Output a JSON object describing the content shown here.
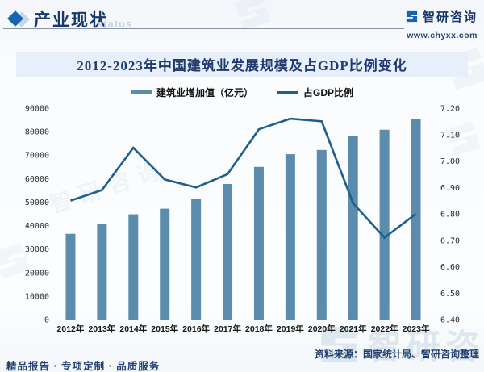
{
  "header": {
    "title": "产业现状",
    "watermark_status": "status",
    "brand": {
      "name": "智研咨询",
      "website": "www.chyxx.com"
    }
  },
  "chart": {
    "title": "2012-2023年中国建筑业发展规模及占GDP比例变化"
  },
  "chart_data": {
    "type": "bar",
    "title": "2012-2023年中国建筑业发展规模及占GDP比例变化",
    "categories": [
      "2012年",
      "2013年",
      "2014年",
      "2015年",
      "2016年",
      "2017年",
      "2018年",
      "2019年",
      "2020年",
      "2021年",
      "2022年",
      "2023年"
    ],
    "series": [
      {
        "name": "建筑业增加值（亿元）",
        "type": "bar",
        "axis": "left",
        "color": "#5b8cab",
        "values": [
          36500,
          40800,
          44800,
          47200,
          51200,
          57700,
          65000,
          70400,
          72200,
          78300,
          80800,
          85400
        ]
      },
      {
        "name": "占GDP比例",
        "type": "line",
        "axis": "right",
        "color": "#1d5f8e",
        "values": [
          6.85,
          6.89,
          7.05,
          6.93,
          6.9,
          6.95,
          7.12,
          7.16,
          7.15,
          6.84,
          6.71,
          6.8
        ]
      }
    ],
    "left_axis": {
      "min": 0,
      "max": 90000,
      "step": 10000,
      "tick_labels": [
        "0",
        "10000",
        "20000",
        "30000",
        "40000",
        "50000",
        "60000",
        "70000",
        "80000",
        "90000"
      ]
    },
    "right_axis": {
      "min": 6.4,
      "max": 7.2,
      "step": 0.1,
      "tick_labels": [
        "6.40",
        "6.50",
        "6.60",
        "6.70",
        "6.80",
        "6.90",
        "7.00",
        "7.10",
        "7.20"
      ]
    },
    "grid": false,
    "legend_position": "top"
  },
  "footer": {
    "tagline": "精品报告 · 专项定制 · 品质服务",
    "source": "资料来源：国家统计局、智研咨询整理"
  },
  "watermarks": {
    "brand": "智研咨询"
  }
}
